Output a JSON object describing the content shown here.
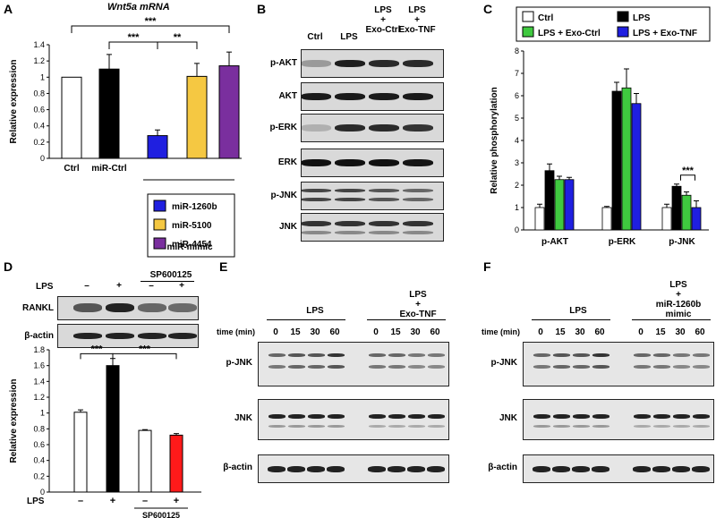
{
  "panels": {
    "A": {
      "letter": "A",
      "title": "Wnt5a mRNA",
      "legend_group": "miR-mimic",
      "chart_data": {
        "type": "bar",
        "ylabel": "Relative expression",
        "ylim": [
          0,
          1.4
        ],
        "yticks": [
          "0",
          "0.2",
          "0.4",
          "0.6",
          "0.8",
          "1",
          "1.2",
          "1.4"
        ],
        "categories": [
          "Ctrl",
          "miR-Ctrl",
          "miR-1260b",
          "miR-5100",
          "miR-4454"
        ],
        "category_labels": [
          "Ctrl",
          "miR-Ctrl"
        ],
        "values": [
          1.0,
          1.1,
          0.28,
          1.01,
          1.14
        ],
        "errors": [
          0,
          0.18,
          0.07,
          0.16,
          0.17
        ],
        "colors": [
          "#ffffff",
          "#000000",
          "#1f1fe0",
          "#f5c842",
          "#7a2f9e"
        ],
        "legend": [
          "miR-1260b",
          "miR-5100",
          "miR-4454"
        ],
        "significance": [
          "***",
          "***",
          "**",
          "***"
        ]
      }
    },
    "B": {
      "letter": "B",
      "lanes": [
        "Ctrl",
        "LPS",
        "LPS\n+\nExo-Ctrl",
        "LPS\n+\nExo-TNF"
      ],
      "rows": [
        "p-AKT",
        "AKT",
        "p-ERK",
        "ERK",
        "p-JNK",
        "JNK"
      ]
    },
    "C": {
      "letter": "C",
      "chart_data": {
        "type": "bar",
        "ylabel": "Relative phosphorylation",
        "ylim": [
          0,
          8
        ],
        "yticks": [
          "0",
          "1",
          "2",
          "3",
          "4",
          "5",
          "6",
          "7",
          "8"
        ],
        "categories": [
          "p-AKT",
          "p-ERK",
          "p-JNK"
        ],
        "series": [
          {
            "name": "Ctrl",
            "color": "#ffffff",
            "values": [
              1.0,
              1.0,
              1.0
            ],
            "errors": [
              0.15,
              0.05,
              0.15
            ]
          },
          {
            "name": "LPS",
            "color": "#000000",
            "values": [
              2.65,
              6.2,
              1.95
            ],
            "errors": [
              0.3,
              0.4,
              0.1
            ]
          },
          {
            "name": "LPS + Exo-Ctrl",
            "color": "#3fc93f",
            "values": [
              2.25,
              6.35,
              1.55
            ],
            "errors": [
              0.15,
              0.85,
              0.15
            ]
          },
          {
            "name": "LPS + Exo-TNF",
            "color": "#1f1fe0",
            "values": [
              2.25,
              5.65,
              1.0
            ],
            "errors": [
              0.1,
              0.45,
              0.3
            ]
          }
        ],
        "significance": [
          "***"
        ]
      }
    },
    "D": {
      "letter": "D",
      "lps_label": "LPS",
      "inhibitor": "SP600125",
      "signs": [
        "–",
        "+",
        "–",
        "+"
      ],
      "rows": [
        "RANKL",
        "β-actin"
      ],
      "chart_data": {
        "type": "bar",
        "ylabel": "Relative expression",
        "ylim": [
          0,
          1.8
        ],
        "yticks": [
          "0",
          "0.2",
          "0.4",
          "0.6",
          "0.8",
          "1",
          "1.2",
          "1.4",
          "1.6",
          "1.8"
        ],
        "categories": [
          "–",
          "+",
          "–",
          "+"
        ],
        "values": [
          1.01,
          1.6,
          0.78,
          0.72
        ],
        "errors": [
          0.03,
          0.09,
          0.01,
          0.02
        ],
        "colors": [
          "#ffffff",
          "#000000",
          "#ffffff",
          "#ff1a1a"
        ],
        "significance": [
          "***",
          "***"
        ]
      }
    },
    "E": {
      "letter": "E",
      "group1": "LPS",
      "group2": "LPS\n+\nExo-TNF",
      "time_label": "time (min)",
      "times": [
        "0",
        "15",
        "30",
        "60"
      ],
      "rows": [
        "p-JNK",
        "JNK",
        "β-actin"
      ]
    },
    "F": {
      "letter": "F",
      "group1": "LPS",
      "group2": "LPS\n+\nmiR-1260b\nmimic",
      "time_label": "time (min)",
      "times": [
        "0",
        "15",
        "30",
        "60"
      ],
      "rows": [
        "p-JNK",
        "JNK",
        "β-actin"
      ]
    }
  }
}
